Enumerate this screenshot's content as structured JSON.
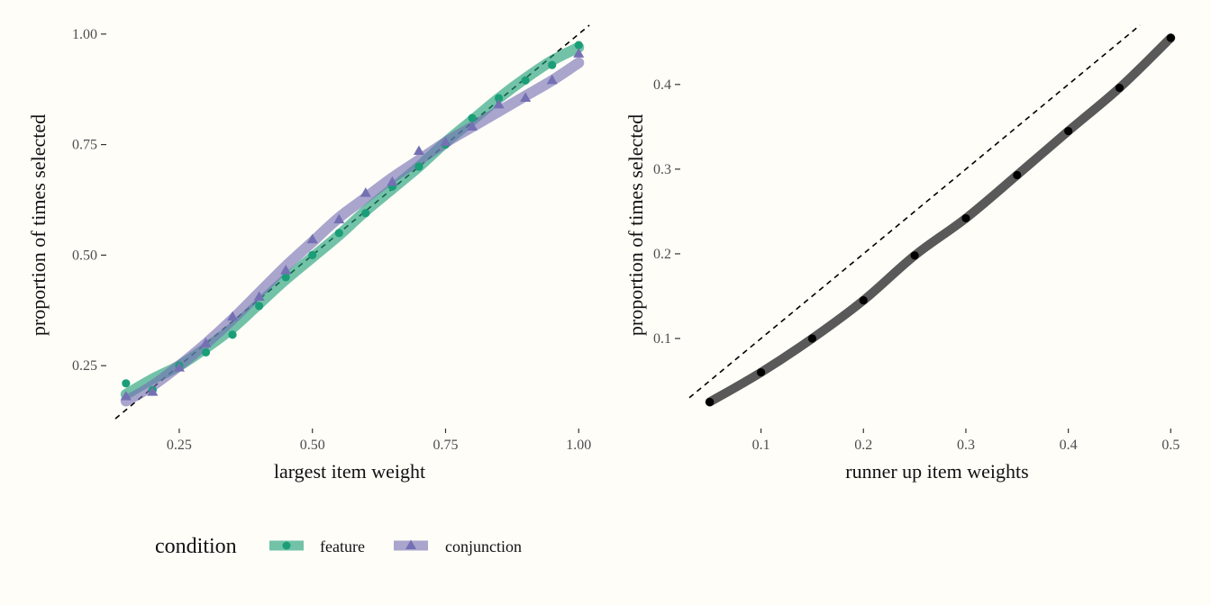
{
  "chart_data": [
    {
      "type": "line",
      "title": "",
      "xlabel": "largest item weight",
      "ylabel": "proportion of times selected",
      "xlim": [
        0.13,
        1.03
      ],
      "ylim": [
        0.12,
        1.02
      ],
      "xticks": [
        "0.25",
        "0.50",
        "0.75",
        "1.00"
      ],
      "xtick_values": [
        0.25,
        0.5,
        0.75,
        1.0
      ],
      "yticks": [
        "0.25",
        "0.50",
        "0.75",
        "1.00"
      ],
      "ytick_values": [
        0.25,
        0.5,
        0.75,
        1.0
      ],
      "grid": false,
      "reference_line": "y = x (dashed)",
      "series": [
        {
          "name": "feature",
          "color": "#1b9e77",
          "marker": "circle",
          "x": [
            0.15,
            0.2,
            0.25,
            0.3,
            0.35,
            0.4,
            0.45,
            0.5,
            0.55,
            0.6,
            0.65,
            0.7,
            0.75,
            0.8,
            0.85,
            0.9,
            0.95,
            1.0
          ],
          "y": [
            0.21,
            0.195,
            0.25,
            0.28,
            0.32,
            0.385,
            0.45,
            0.5,
            0.55,
            0.595,
            0.655,
            0.7,
            0.75,
            0.81,
            0.855,
            0.895,
            0.93,
            0.975
          ],
          "smooth": [
            0.185,
            0.22,
            0.25,
            0.29,
            0.335,
            0.39,
            0.445,
            0.495,
            0.545,
            0.6,
            0.65,
            0.7,
            0.755,
            0.805,
            0.855,
            0.9,
            0.94,
            0.97
          ]
        },
        {
          "name": "conjunction",
          "color": "#7570b3",
          "marker": "triangle",
          "x": [
            0.15,
            0.2,
            0.25,
            0.3,
            0.35,
            0.4,
            0.45,
            0.5,
            0.55,
            0.6,
            0.65,
            0.7,
            0.75,
            0.8,
            0.85,
            0.9,
            0.95,
            1.0
          ],
          "y": [
            0.18,
            0.19,
            0.245,
            0.3,
            0.36,
            0.405,
            0.465,
            0.535,
            0.58,
            0.64,
            0.665,
            0.735,
            0.755,
            0.79,
            0.84,
            0.855,
            0.895,
            0.955
          ],
          "smooth": [
            0.17,
            0.205,
            0.25,
            0.3,
            0.355,
            0.415,
            0.475,
            0.53,
            0.585,
            0.63,
            0.675,
            0.715,
            0.755,
            0.79,
            0.825,
            0.86,
            0.895,
            0.935
          ]
        }
      ],
      "legend": {
        "title": "condition",
        "position": "bottom",
        "items": [
          "feature",
          "conjunction"
        ]
      }
    },
    {
      "type": "line",
      "title": "",
      "xlabel": "runner up item weights",
      "ylabel": "proportion of times selected",
      "xlim": [
        0.03,
        0.505
      ],
      "ylim": [
        0.0,
        0.47
      ],
      "xticks": [
        "0.1",
        "0.2",
        "0.3",
        "0.4",
        "0.5"
      ],
      "xtick_values": [
        0.1,
        0.2,
        0.3,
        0.4,
        0.5
      ],
      "yticks": [
        "0.1",
        "0.2",
        "0.3",
        "0.4"
      ],
      "ytick_values": [
        0.1,
        0.2,
        0.3,
        0.4
      ],
      "grid": false,
      "reference_line": "y = x (dashed)",
      "series": [
        {
          "color": "#000000",
          "line_color": "#595959",
          "marker": "circle",
          "x": [
            0.05,
            0.1,
            0.15,
            0.2,
            0.25,
            0.3,
            0.35,
            0.4,
            0.45,
            0.5
          ],
          "y": [
            0.025,
            0.06,
            0.1,
            0.145,
            0.198,
            0.242,
            0.293,
            0.345,
            0.396,
            0.455
          ]
        }
      ]
    }
  ]
}
